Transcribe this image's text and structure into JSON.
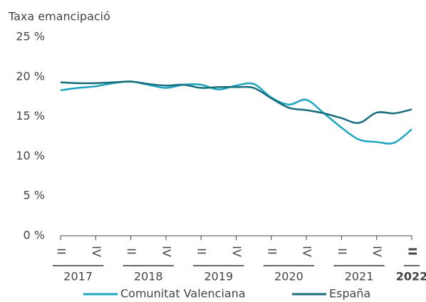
{
  "chart_data": {
    "type": "line",
    "y_label": "Taxa emancipació",
    "categories": [
      "II",
      null,
      "IV",
      null,
      "II",
      null,
      "IV",
      null,
      "II",
      null,
      "IV",
      null,
      "II",
      null,
      "IV",
      null,
      "II",
      null,
      "IV",
      null,
      "II"
    ],
    "year_groups": [
      "2017",
      "2018",
      "2019",
      "2020",
      "2021",
      "2022"
    ],
    "series": [
      {
        "name": "Comunitat Valenciana",
        "color": "#1ba4c0",
        "values": [
          18.3,
          18.6,
          18.8,
          19.2,
          19.4,
          19.0,
          18.6,
          19.0,
          19.0,
          18.4,
          18.9,
          19.1,
          17.4,
          16.5,
          17.1,
          15.4,
          13.6,
          12.1,
          11.8,
          11.7,
          13.4
        ]
      },
      {
        "name": "España",
        "color": "#176d7c",
        "values": [
          19.3,
          19.2,
          19.2,
          19.3,
          19.4,
          19.1,
          18.9,
          19.0,
          18.6,
          18.7,
          18.7,
          18.6,
          17.3,
          16.1,
          15.8,
          15.4,
          14.8,
          14.2,
          15.5,
          15.4,
          15.9
        ]
      }
    ],
    "ylim": [
      0,
      25
    ],
    "yticks": [
      {
        "value": 0,
        "label": "0 %"
      },
      {
        "value": 5,
        "label": "5 %"
      },
      {
        "value": 10,
        "label": "10 %"
      },
      {
        "value": 15,
        "label": "15 %"
      },
      {
        "value": 20,
        "label": "20 %"
      },
      {
        "value": 25,
        "label": "25 %"
      }
    ]
  }
}
